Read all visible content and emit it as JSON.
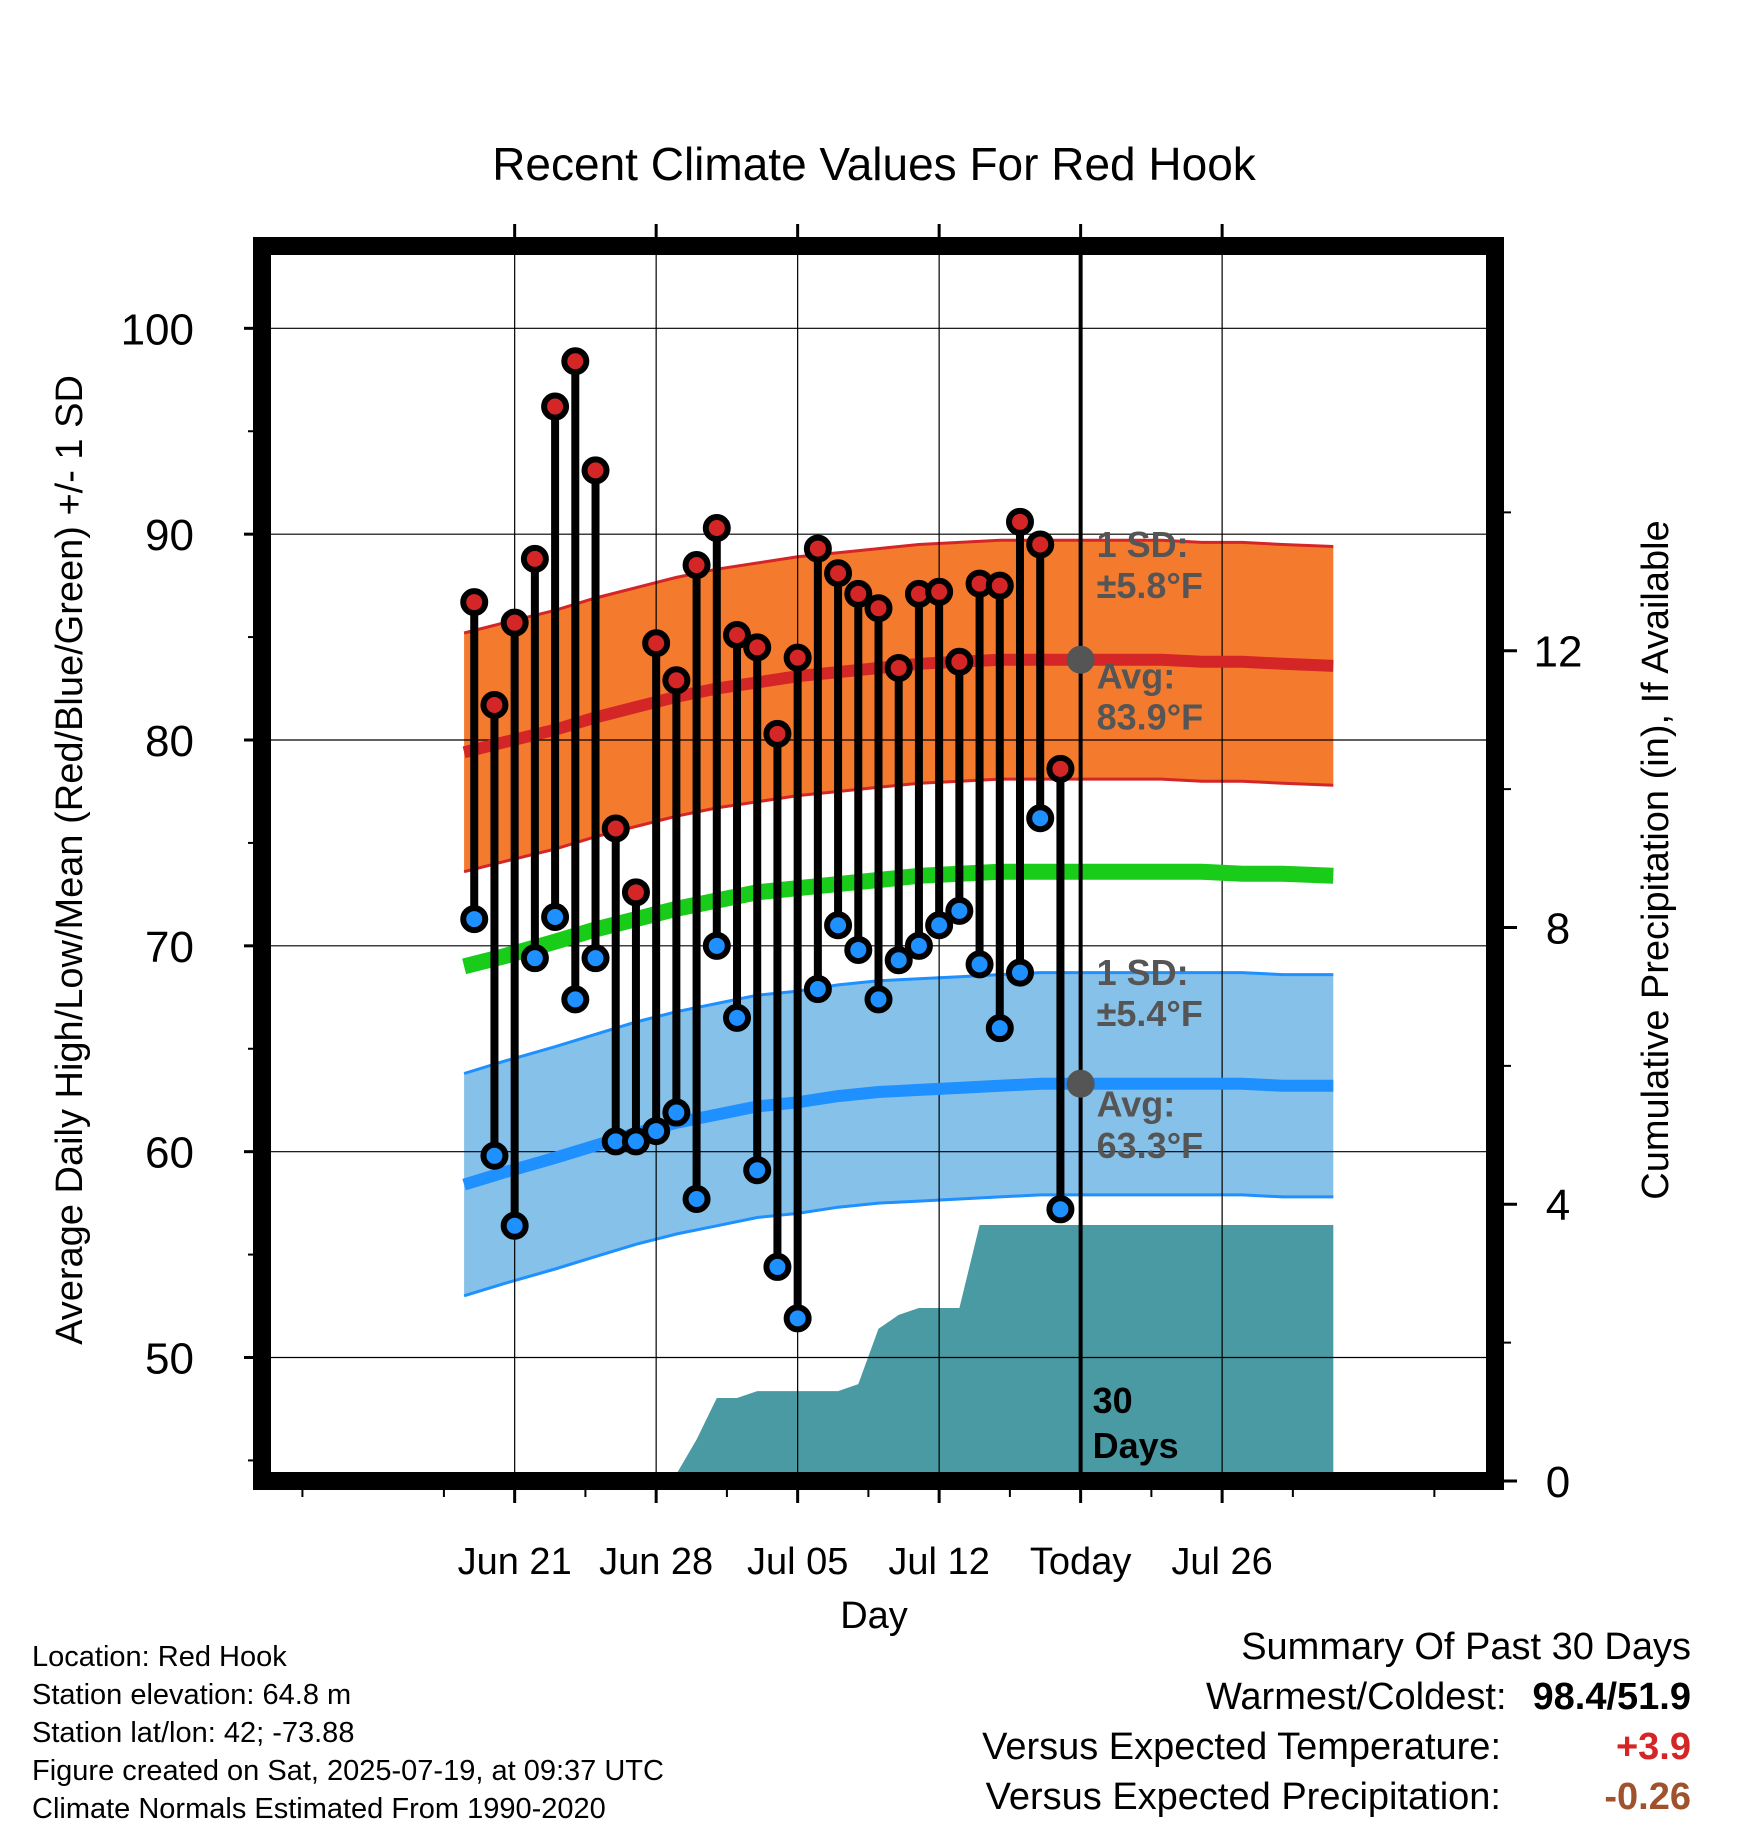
{
  "chart_data": {
    "type": "line",
    "title": "Recent Climate Values For Red Hook",
    "xlabel": "Day",
    "ylabel_left": "Average Daily High/Low/Mean (Red/Blue/Green) +/- 1 SD",
    "ylabel_right": "Cumulative Precipitation (in), If Available",
    "y_left_range": [
      44,
      104
    ],
    "y_left_ticks": [
      "50",
      "60",
      "70",
      "80",
      "90",
      "100"
    ],
    "y_right_range": [
      0,
      17.85
    ],
    "y_right_ticks": [
      "0",
      "4",
      "8",
      "12"
    ],
    "x_day_range": [
      -12.5,
      48.5
    ],
    "x_ticks": [
      {
        "day": 0,
        "label": "Jun 21"
      },
      {
        "day": 7,
        "label": "Jun 28"
      },
      {
        "day": 14,
        "label": "Jul 05"
      },
      {
        "day": 21,
        "label": "Jul 12"
      },
      {
        "day": 28,
        "label": "Today"
      },
      {
        "day": 35,
        "label": "Jul 26"
      }
    ],
    "today_day": 28,
    "days": [
      -2,
      -1,
      0,
      1,
      2,
      3,
      4,
      5,
      6,
      7,
      8,
      9,
      10,
      11,
      12,
      13,
      14,
      15,
      16,
      17,
      18,
      19,
      20,
      21,
      22,
      23,
      24,
      25,
      26,
      27
    ],
    "daily_high": [
      86.7,
      81.7,
      85.7,
      88.8,
      96.2,
      98.4,
      93.1,
      75.7,
      72.6,
      84.7,
      82.9,
      88.5,
      90.3,
      85.1,
      84.5,
      80.3,
      84.0,
      89.3,
      88.1,
      87.1,
      86.4,
      83.5,
      87.1,
      87.2,
      83.8,
      87.6,
      87.5,
      90.6,
      89.5,
      78.6
    ],
    "daily_low": [
      71.3,
      59.8,
      56.4,
      69.4,
      71.4,
      67.4,
      69.4,
      60.5,
      60.5,
      61.0,
      61.9,
      57.7,
      70.0,
      66.5,
      59.1,
      54.4,
      51.9,
      67.9,
      71.0,
      69.8,
      67.4,
      69.3,
      70.0,
      71.0,
      71.7,
      69.1,
      66.0,
      68.7,
      76.2,
      57.2
    ],
    "normal_days": [
      -2.5,
      -0.5,
      2,
      4,
      6,
      8,
      10,
      12,
      14,
      16,
      18,
      20,
      22,
      24,
      26,
      28,
      30,
      32,
      34,
      36,
      38,
      40.5
    ],
    "normal_high": [
      79.4,
      79.9,
      80.5,
      81.1,
      81.6,
      82.1,
      82.5,
      82.8,
      83.1,
      83.3,
      83.5,
      83.7,
      83.8,
      83.9,
      83.9,
      83.9,
      83.9,
      83.9,
      83.8,
      83.8,
      83.7,
      83.6
    ],
    "normal_low": [
      58.4,
      59.0,
      59.7,
      60.3,
      60.9,
      61.4,
      61.8,
      62.2,
      62.4,
      62.7,
      62.9,
      63.0,
      63.1,
      63.2,
      63.3,
      63.3,
      63.3,
      63.3,
      63.3,
      63.3,
      63.2,
      63.2
    ],
    "normal_mean": [
      69.0,
      69.5,
      70.2,
      70.8,
      71.3,
      71.8,
      72.2,
      72.6,
      72.8,
      73.0,
      73.2,
      73.4,
      73.5,
      73.6,
      73.6,
      73.6,
      73.6,
      73.6,
      73.6,
      73.5,
      73.5,
      73.4
    ],
    "high_sd": 5.8,
    "low_sd": 5.4,
    "precip_days": [
      -2.5,
      0,
      1,
      4,
      8,
      9,
      10,
      11,
      12,
      13,
      14,
      15,
      16,
      17,
      18,
      19,
      20,
      21,
      22,
      23,
      24,
      28,
      40.5
    ],
    "precip_cum": [
      0,
      0,
      0.1,
      0.1,
      0.1,
      0.6,
      1.2,
      1.2,
      1.3,
      1.3,
      1.3,
      1.3,
      1.3,
      1.4,
      2.2,
      2.4,
      2.5,
      2.5,
      2.5,
      3.7,
      3.7,
      3.7,
      3.7
    ],
    "annotations": {
      "high_sd_label_1": "1 SD:",
      "high_sd_label_2": "±5.8°F",
      "high_avg_label_1": "Avg:",
      "high_avg_label_2": "83.9°F",
      "low_sd_label_1": "1 SD:",
      "low_sd_label_2": "±5.4°F",
      "low_avg_label_1": "Avg:",
      "low_avg_label_2": "63.3°F",
      "days_label_1": "30",
      "days_label_2": "Days"
    },
    "colors": {
      "high_band": "#f47a2e",
      "high_line": "#d42626",
      "low_band": "#85c1e9",
      "low_line": "#1e90ff",
      "mean_line": "#19cc19",
      "precip": "#4a9aa3",
      "high_point": "#d42626",
      "low_point": "#1e90ff",
      "annotation": "#555555"
    }
  },
  "footer": {
    "location": "Location: Red Hook",
    "elevation": "Station elevation: 64.8 m",
    "latlon": "Station lat/lon: 42; -73.88",
    "created": "Figure created on Sat, 2025-07-19, at 09:37 UTC",
    "normals": "Climate Normals Estimated From 1990-2020"
  },
  "summary": {
    "title": "Summary Of Past 30 Days",
    "warmest_label": "Warmest/Coldest:",
    "warmest_value": "98.4/51.9",
    "temp_label": "Versus Expected Temperature:",
    "temp_value": "+3.9",
    "precip_label": "Versus Expected Precipitation:",
    "precip_value": "-0.26"
  }
}
